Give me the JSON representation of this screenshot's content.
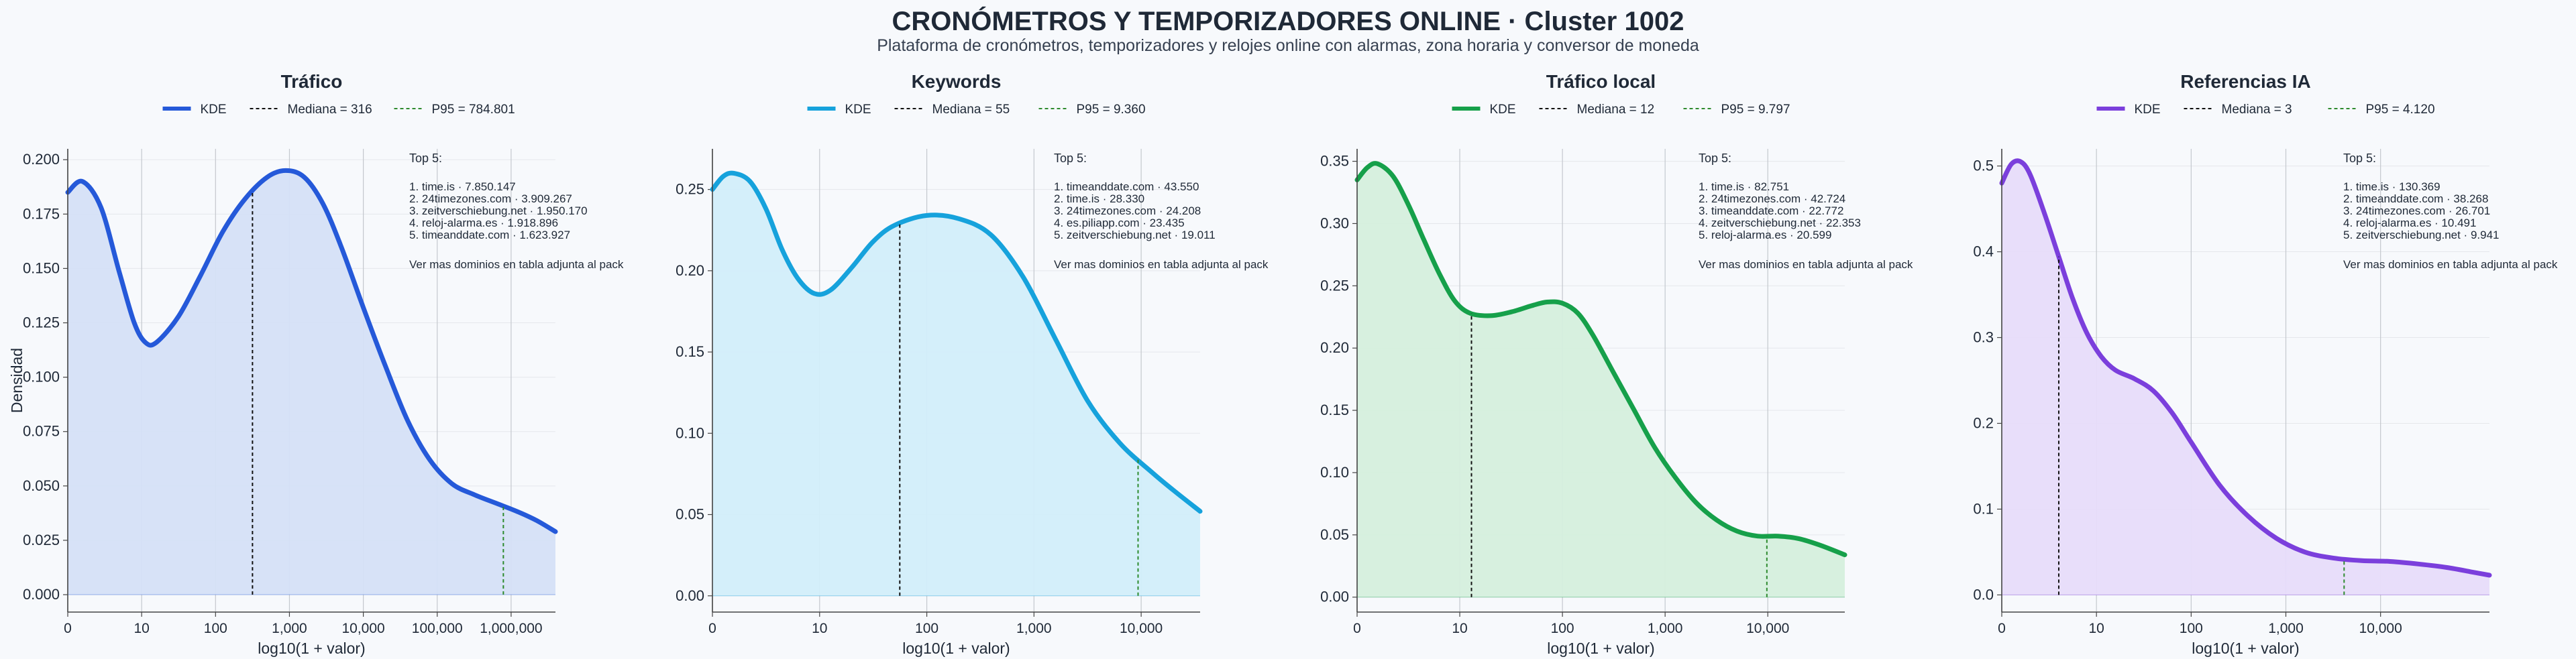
{
  "header": {
    "title": "CRONÓMETROS Y TEMPORIZADORES ONLINE · Cluster 1002",
    "subtitle": "Plataforma de cronómetros, temporizadores y relojes online con alarmas, zona horaria y conversor de moneda"
  },
  "shared": {
    "xlabel": "log10(1 + valor)",
    "ylabel": "Densidad",
    "legend_kde": "KDE",
    "top_title": "Top 5:",
    "top_footer": "Ver mas dominios en tabla adjunta al pack"
  },
  "chart_data": [
    {
      "type": "area",
      "title": "Tráfico",
      "color": "#2559d9",
      "fill": "#d5e0f7",
      "xlim": [
        0,
        6.6
      ],
      "ylim": [
        -0.008,
        0.205
      ],
      "yticks": [
        0.0,
        0.025,
        0.05,
        0.075,
        0.1,
        0.125,
        0.15,
        0.175,
        0.2
      ],
      "ytick_labels": [
        "0.000",
        "0.025",
        "0.050",
        "0.075",
        "0.100",
        "0.125",
        "0.150",
        "0.175",
        "0.200"
      ],
      "xticks": [
        0,
        1,
        2,
        3,
        4,
        5,
        6
      ],
      "xtick_labels": [
        "0",
        "10",
        "100",
        "1,000",
        "10,000",
        "100,000",
        "1,000,000"
      ],
      "show_ylabel": true,
      "kde_x": [
        0,
        0.2,
        0.45,
        0.7,
        0.9,
        1.05,
        1.2,
        1.5,
        1.8,
        2.1,
        2.4,
        2.7,
        2.95,
        3.2,
        3.45,
        3.7,
        4.0,
        4.3,
        4.6,
        4.9,
        5.2,
        5.5,
        5.8,
        6.1,
        6.35,
        6.6
      ],
      "kde_y": [
        0.185,
        0.19,
        0.178,
        0.148,
        0.125,
        0.116,
        0.116,
        0.128,
        0.147,
        0.167,
        0.182,
        0.192,
        0.195,
        0.192,
        0.18,
        0.16,
        0.132,
        0.105,
        0.08,
        0.062,
        0.051,
        0.046,
        0.042,
        0.038,
        0.034,
        0.029
      ],
      "median": {
        "label": "Mediana = 316",
        "x": 2.5,
        "color": "#111111"
      },
      "p95": {
        "label": "P95 = 784.801",
        "x": 5.895,
        "color": "#2e8b2e"
      },
      "top": [
        "1. time.is · 7.850.147",
        "2. 24timezones.com · 3.909.267",
        "3. zeitverschiebung.net · 1.950.170",
        "4. reloj-alarma.es · 1.918.896",
        "5. timeanddate.com · 1.623.927"
      ]
    },
    {
      "type": "area",
      "title": "Keywords",
      "color": "#16a2dc",
      "fill": "#d2eefa",
      "xlim": [
        0,
        4.55
      ],
      "ylim": [
        -0.01,
        0.275
      ],
      "yticks": [
        0.0,
        0.05,
        0.1,
        0.15,
        0.2,
        0.25
      ],
      "ytick_labels": [
        "0.00",
        "0.05",
        "0.10",
        "0.15",
        "0.20",
        "0.25"
      ],
      "xticks": [
        0,
        1,
        2,
        3,
        4
      ],
      "xtick_labels": [
        "0",
        "10",
        "100",
        "1,000",
        "10,000"
      ],
      "show_ylabel": false,
      "kde_x": [
        0,
        0.1,
        0.2,
        0.35,
        0.5,
        0.65,
        0.8,
        0.95,
        1.1,
        1.3,
        1.5,
        1.7,
        2.0,
        2.3,
        2.6,
        2.9,
        3.2,
        3.5,
        3.8,
        4.1,
        4.3,
        4.55
      ],
      "kde_y": [
        0.25,
        0.258,
        0.26,
        0.255,
        0.238,
        0.213,
        0.195,
        0.186,
        0.188,
        0.202,
        0.218,
        0.228,
        0.234,
        0.232,
        0.222,
        0.196,
        0.158,
        0.12,
        0.094,
        0.076,
        0.065,
        0.052
      ],
      "median": {
        "label": "Mediana = 55",
        "x": 1.748,
        "color": "#111111"
      },
      "p95": {
        "label": "P95 = 9.360",
        "x": 3.971,
        "color": "#2e8b2e"
      },
      "top": [
        "1. timeanddate.com · 43.550",
        "2. time.is · 28.330",
        "3. 24timezones.com · 24.208",
        "4. es.piliapp.com · 23.435",
        "5. zeitverschiebung.net · 19.011"
      ]
    },
    {
      "type": "area",
      "title": "Tráfico local",
      "color": "#16a04a",
      "fill": "#d5efdd",
      "xlim": [
        0,
        4.75
      ],
      "ylim": [
        -0.012,
        0.36
      ],
      "yticks": [
        0.0,
        0.05,
        0.1,
        0.15,
        0.2,
        0.25,
        0.3,
        0.35
      ],
      "ytick_labels": [
        "0.00",
        "0.05",
        "0.10",
        "0.15",
        "0.20",
        "0.25",
        "0.30",
        "0.35"
      ],
      "xticks": [
        0,
        1,
        2,
        3,
        4
      ],
      "xtick_labels": [
        "0",
        "10",
        "100",
        "1,000",
        "10,000"
      ],
      "show_ylabel": false,
      "kde_x": [
        0,
        0.1,
        0.2,
        0.35,
        0.5,
        0.65,
        0.8,
        0.95,
        1.1,
        1.3,
        1.5,
        1.7,
        1.85,
        2.0,
        2.15,
        2.3,
        2.5,
        2.7,
        2.9,
        3.1,
        3.3,
        3.5,
        3.7,
        3.9,
        4.1,
        4.3,
        4.5,
        4.75
      ],
      "kde_y": [
        0.335,
        0.345,
        0.348,
        0.338,
        0.315,
        0.287,
        0.26,
        0.238,
        0.228,
        0.226,
        0.229,
        0.234,
        0.237,
        0.236,
        0.228,
        0.21,
        0.18,
        0.15,
        0.12,
        0.096,
        0.076,
        0.062,
        0.053,
        0.049,
        0.049,
        0.047,
        0.042,
        0.034
      ],
      "median": {
        "label": "Mediana = 12",
        "x": 1.114,
        "color": "#111111"
      },
      "p95": {
        "label": "P95 = 9.797",
        "x": 3.991,
        "color": "#2e8b2e"
      },
      "top": [
        "1. time.is · 82.751",
        "2. 24timezones.com · 42.724",
        "3. timeanddate.com · 22.772",
        "4. zeitverschiebung.net · 22.353",
        "5. reloj-alarma.es · 20.599"
      ]
    },
    {
      "type": "area",
      "title": "Referencias IA",
      "color": "#7b3fdc",
      "fill": "#e7dcfa",
      "xlim": [
        0,
        5.15
      ],
      "ylim": [
        -0.02,
        0.52
      ],
      "yticks": [
        0.0,
        0.1,
        0.2,
        0.3,
        0.4,
        0.5
      ],
      "ytick_labels": [
        "0.0",
        "0.1",
        "0.2",
        "0.3",
        "0.4",
        "0.5"
      ],
      "xticks": [
        0,
        1,
        2,
        3,
        4
      ],
      "xtick_labels": [
        "0",
        "10",
        "100",
        "1,000",
        "10,000"
      ],
      "show_ylabel": false,
      "kde_x": [
        0,
        0.1,
        0.2,
        0.3,
        0.45,
        0.6,
        0.75,
        0.9,
        1.05,
        1.2,
        1.4,
        1.6,
        1.8,
        2.0,
        2.3,
        2.6,
        2.9,
        3.2,
        3.5,
        3.8,
        4.1,
        4.4,
        4.7,
        4.95,
        5.15
      ],
      "kde_y": [
        0.48,
        0.502,
        0.505,
        0.49,
        0.445,
        0.395,
        0.345,
        0.305,
        0.278,
        0.262,
        0.252,
        0.238,
        0.212,
        0.178,
        0.128,
        0.092,
        0.066,
        0.05,
        0.043,
        0.04,
        0.039,
        0.036,
        0.032,
        0.027,
        0.023
      ],
      "median": {
        "label": "Mediana = 3",
        "x": 0.602,
        "color": "#111111"
      },
      "p95": {
        "label": "P95 = 4.120",
        "x": 3.615,
        "color": "#2e8b2e"
      },
      "top": [
        "1. time.is · 130.369",
        "2. timeanddate.com · 38.268",
        "3. 24timezones.com · 26.701",
        "4. reloj-alarma.es · 10.491",
        "5. zeitverschiebung.net · 9.941"
      ]
    }
  ]
}
